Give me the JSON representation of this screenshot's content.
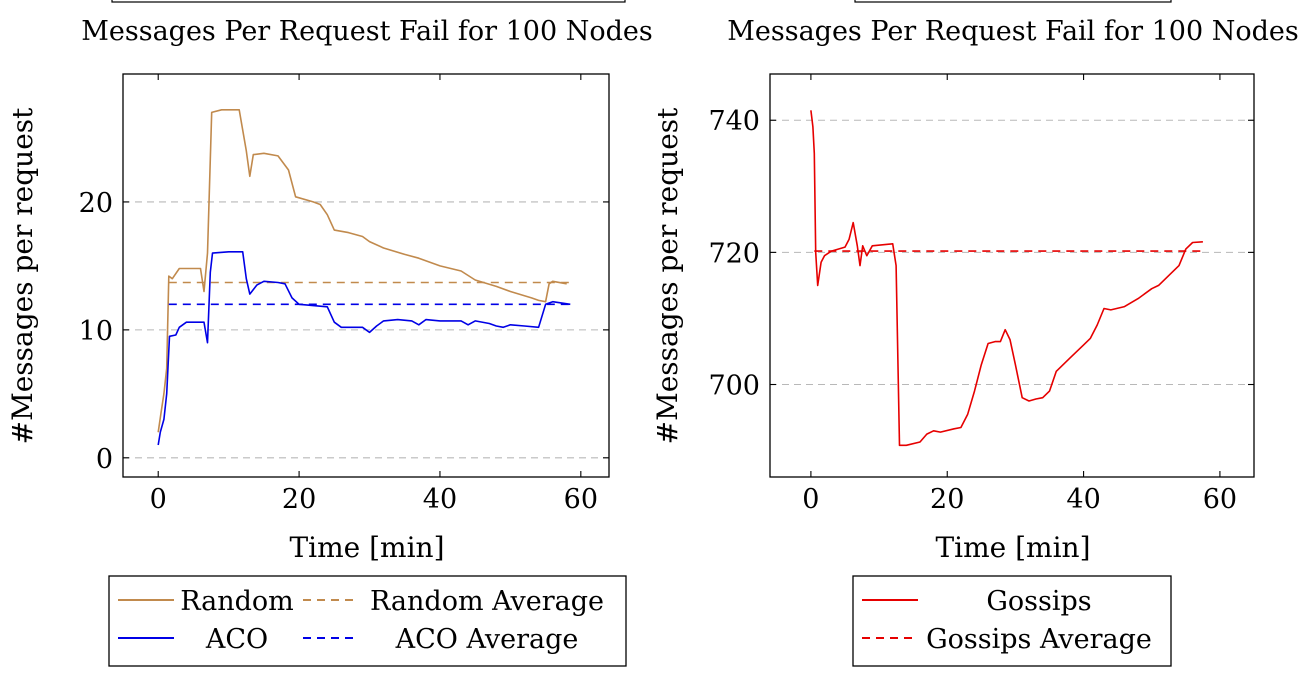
{
  "chart_data": [
    {
      "type": "line",
      "title": "Messages Per Request Fail for 100 Nodes",
      "xlabel": "Time [min]",
      "ylabel": "#Messages per request",
      "xlim": [
        -5,
        64
      ],
      "ylim": [
        -1.5,
        30
      ],
      "xticks": [
        0,
        20,
        40,
        60
      ],
      "yticks": [
        0,
        10,
        20
      ],
      "xtick_labels": [
        "0",
        "20",
        "40",
        "60"
      ],
      "ytick_labels": [
        "0",
        "10",
        "20"
      ],
      "grid": "horizontal dashed",
      "legend_position": "bottom",
      "series": [
        {
          "name": "Random",
          "color": "#c18a4d",
          "style": "solid",
          "points": [
            [
              0,
              2
            ],
            [
              0.4,
              3.5
            ],
            [
              0.8,
              5
            ],
            [
              1.2,
              7
            ],
            [
              1.5,
              14.2
            ],
            [
              2,
              14
            ],
            [
              3,
              14.8
            ],
            [
              6,
              14.8
            ],
            [
              6.5,
              13
            ],
            [
              7,
              16
            ],
            [
              7.6,
              27
            ],
            [
              9,
              27.2
            ],
            [
              11.5,
              27.2
            ],
            [
              12.5,
              24
            ],
            [
              13,
              22
            ],
            [
              13.5,
              23.7
            ],
            [
              15,
              23.8
            ],
            [
              17,
              23.6
            ],
            [
              18.5,
              22.5
            ],
            [
              19.5,
              20.4
            ],
            [
              22,
              20
            ],
            [
              23,
              19.8
            ],
            [
              24,
              19
            ],
            [
              25,
              17.8
            ],
            [
              27,
              17.6
            ],
            [
              29,
              17.3
            ],
            [
              30,
              16.9
            ],
            [
              32,
              16.4
            ],
            [
              35,
              15.9
            ],
            [
              37,
              15.6
            ],
            [
              40,
              15
            ],
            [
              43,
              14.6
            ],
            [
              45,
              13.9
            ],
            [
              48,
              13.4
            ],
            [
              50,
              13
            ],
            [
              53,
              12.5
            ],
            [
              54,
              12.3
            ],
            [
              55,
              12.2
            ],
            [
              55.5,
              13.6
            ],
            [
              56,
              13.8
            ],
            [
              58,
              13.6
            ]
          ]
        },
        {
          "name": "Random Average",
          "color": "#c18a4d",
          "style": "dashed",
          "points": [
            [
              1.5,
              13.7
            ],
            [
              58.5,
              13.7
            ]
          ]
        },
        {
          "name": "ACO",
          "color": "#0000e6",
          "style": "solid",
          "points": [
            [
              0,
              1
            ],
            [
              0.3,
              2
            ],
            [
              0.8,
              3
            ],
            [
              1.2,
              5
            ],
            [
              1.6,
              9.5
            ],
            [
              2.5,
              9.6
            ],
            [
              3,
              10.2
            ],
            [
              4,
              10.6
            ],
            [
              6.5,
              10.6
            ],
            [
              7,
              9
            ],
            [
              7.4,
              14.5
            ],
            [
              7.7,
              16
            ],
            [
              10,
              16.1
            ],
            [
              12,
              16.1
            ],
            [
              12.5,
              14
            ],
            [
              13,
              12.8
            ],
            [
              14,
              13.5
            ],
            [
              15,
              13.8
            ],
            [
              17,
              13.7
            ],
            [
              18,
              13.6
            ],
            [
              19,
              12.5
            ],
            [
              20,
              12
            ],
            [
              24,
              11.8
            ],
            [
              25,
              10.6
            ],
            [
              26,
              10.2
            ],
            [
              29,
              10.2
            ],
            [
              30,
              9.8
            ],
            [
              31,
              10.3
            ],
            [
              32,
              10.7
            ],
            [
              34,
              10.8
            ],
            [
              36,
              10.7
            ],
            [
              37,
              10.4
            ],
            [
              38,
              10.8
            ],
            [
              40,
              10.7
            ],
            [
              43,
              10.7
            ],
            [
              44,
              10.4
            ],
            [
              45,
              10.7
            ],
            [
              47,
              10.5
            ],
            [
              48,
              10.3
            ],
            [
              49,
              10.2
            ],
            [
              50,
              10.4
            ],
            [
              52,
              10.3
            ],
            [
              54,
              10.2
            ],
            [
              55,
              12
            ],
            [
              56,
              12.2
            ],
            [
              58.5,
              12
            ]
          ]
        },
        {
          "name": "ACO Average",
          "color": "#0000e6",
          "style": "dashed",
          "points": [
            [
              1.5,
              12
            ],
            [
              58.5,
              12
            ]
          ]
        }
      ],
      "legend": [
        {
          "label": "Random",
          "series": 0
        },
        {
          "label": "Random Average",
          "series": 1
        },
        {
          "label": "ACO",
          "series": 2
        },
        {
          "label": "ACO Average",
          "series": 3
        }
      ]
    },
    {
      "type": "line",
      "title": "Messages Per Request Fail for 100 Nodes",
      "xlabel": "Time [min]",
      "ylabel": "#Messages per request",
      "xlim": [
        -6,
        65
      ],
      "ylim": [
        686,
        747
      ],
      "xticks": [
        0,
        20,
        40,
        60
      ],
      "yticks": [
        700,
        720,
        740
      ],
      "xtick_labels": [
        "0",
        "20",
        "40",
        "60"
      ],
      "ytick_labels": [
        "700",
        "720",
        "740"
      ],
      "grid": "horizontal dashed",
      "legend_position": "bottom",
      "series": [
        {
          "name": "Gossips",
          "color": "#e60000",
          "style": "solid",
          "points": [
            [
              0,
              741.5
            ],
            [
              0.3,
              739
            ],
            [
              0.5,
              735
            ],
            [
              0.7,
              720
            ],
            [
              1,
              715
            ],
            [
              1.5,
              718.5
            ],
            [
              2,
              719.5
            ],
            [
              3,
              720.2
            ],
            [
              5,
              720.8
            ],
            [
              5.6,
              722
            ],
            [
              6.2,
              724.5
            ],
            [
              6.8,
              721
            ],
            [
              7.2,
              718
            ],
            [
              7.6,
              721
            ],
            [
              8.2,
              719.5
            ],
            [
              9,
              721
            ],
            [
              12,
              721.3
            ],
            [
              12.5,
              718
            ],
            [
              13,
              690.8
            ],
            [
              14,
              690.8
            ],
            [
              16,
              691.3
            ],
            [
              17,
              692.5
            ],
            [
              18,
              693
            ],
            [
              19,
              692.8
            ],
            [
              21,
              693.3
            ],
            [
              22,
              693.5
            ],
            [
              23,
              695.5
            ],
            [
              24,
              699
            ],
            [
              25,
              703
            ],
            [
              26,
              706.2
            ],
            [
              27,
              706.5
            ],
            [
              27.8,
              706.5
            ],
            [
              28.5,
              708.3
            ],
            [
              29.2,
              706.8
            ],
            [
              30,
              703
            ],
            [
              31,
              698
            ],
            [
              32,
              697.5
            ],
            [
              33,
              697.8
            ],
            [
              34,
              698
            ],
            [
              35,
              699
            ],
            [
              36,
              702
            ],
            [
              38,
              704
            ],
            [
              40,
              706
            ],
            [
              41,
              707
            ],
            [
              42,
              709
            ],
            [
              43,
              711.5
            ],
            [
              44,
              711.3
            ],
            [
              46,
              711.8
            ],
            [
              48,
              713
            ],
            [
              50,
              714.5
            ],
            [
              51,
              715
            ],
            [
              52,
              716
            ],
            [
              54,
              718
            ],
            [
              55,
              720.5
            ],
            [
              56,
              721.5
            ],
            [
              57.5,
              721.6
            ]
          ]
        },
        {
          "name": "Gossips Average",
          "color": "#e60000",
          "style": "dashed",
          "points": [
            [
              0.5,
              720.2
            ],
            [
              57.5,
              720.2
            ]
          ]
        }
      ],
      "legend": [
        {
          "label": "Gossips",
          "series": 0
        },
        {
          "label": "Gossips Average",
          "series": 1
        }
      ]
    }
  ]
}
